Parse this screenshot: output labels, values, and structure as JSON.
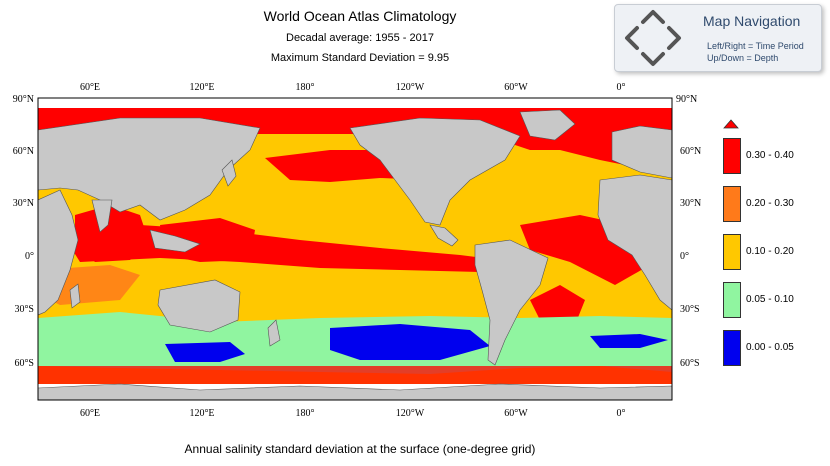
{
  "header": {
    "title": "World Ocean Atlas Climatology",
    "subtitle": "Decadal average: 1955 - 2017",
    "subtitle2": "Maximum Standard Deviation = 9.95"
  },
  "caption": "Annual salinity  standard deviation at the surface (one-degree grid)",
  "navigation": {
    "title": "Map Navigation",
    "line1": "Left/Right  = Time Period",
    "line2": "Up/Down  = Depth",
    "icon": "four-way-arrows-icon"
  },
  "map": {
    "top_labels": [
      "60°E",
      "120°E",
      "180°",
      "120°W",
      "60°W",
      "0°"
    ],
    "bottom_labels": [
      "60°E",
      "120°E",
      "180°",
      "120°W",
      "60°W",
      "0°"
    ],
    "left_labels": [
      "90°N",
      "60°N",
      "30°N",
      "0°",
      "30°S",
      "60°S"
    ],
    "right_labels": [
      "90°N",
      "60°N",
      "30°N",
      "0°",
      "30°S",
      "60°S"
    ]
  },
  "legend": [
    {
      "label": "0.30 - 0.40",
      "color": "#ff0000"
    },
    {
      "label": "0.20 - 0.30",
      "color": "#ff7a1a"
    },
    {
      "label": "0.10 - 0.20",
      "color": "#ffc800"
    },
    {
      "label": "0.05 - 0.10",
      "color": "#90f5a0"
    },
    {
      "label": "0.00 - 0.05",
      "color": "#0000ee"
    }
  ],
  "colors": {
    "land": "#c8c8c8",
    "frame": "#000000"
  }
}
